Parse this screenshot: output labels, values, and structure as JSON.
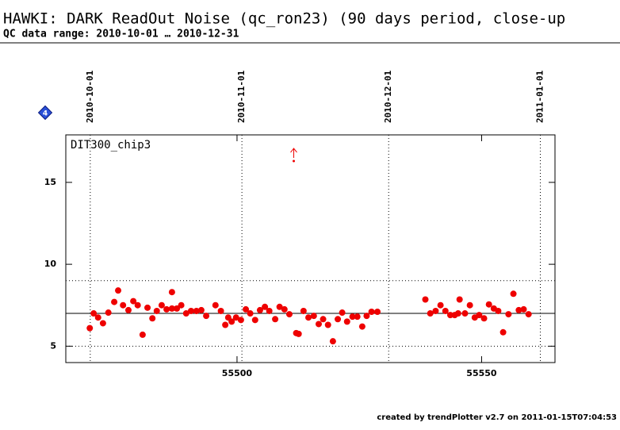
{
  "chart_data": {
    "type": "scatter",
    "title": "HAWKI: DARK ReadOut Noise (qc_ron23) (90 days period, close-up",
    "subtitle": "QC data range: 2010-10-01 … 2010-12-31",
    "panel_label": "DIT300_chip3",
    "badge": "4",
    "footer": "created by trendPlotter v2.7 on 2011-01-15T07:04:53",
    "color": "#ee0000",
    "xlim": [
      55465,
      55565
    ],
    "ylim": [
      4,
      17.9
    ],
    "xticks": [
      55500,
      55550
    ],
    "yticks": [
      5,
      10,
      15
    ],
    "date_ticks": [
      {
        "value": 55470,
        "label": "2010-10-01"
      },
      {
        "value": 55501,
        "label": "2010-11-01"
      },
      {
        "value": 55531,
        "label": "2010-12-01"
      },
      {
        "value": 55562,
        "label": "2011-01-01"
      }
    ],
    "ref_lines": [
      {
        "value": 7,
        "style": "solid"
      },
      {
        "value": 9,
        "style": "dotted"
      },
      {
        "value": 5,
        "style": "dotted"
      }
    ],
    "x": [
      55469.9,
      55470.7,
      55471.6,
      55472.6,
      55473.7,
      55474.9,
      55475.7,
      55476.7,
      55477.8,
      55478.8,
      55479.7,
      55480.7,
      55481.7,
      55482.7,
      55483.6,
      55484.6,
      55485.6,
      55486.7,
      55486.7,
      55487.7,
      55488.6,
      55489.6,
      55490.6,
      55491.7,
      55492.7,
      55493.7,
      55495.6,
      55496.7,
      55497.6,
      55498.2,
      55498.9,
      55499.8,
      55500.8,
      55501.8,
      55502.7,
      55503.7,
      55504.7,
      55505.7,
      55506.6,
      55507.8,
      55508.7,
      55509.7,
      55510.7,
      55511.6,
      55512.1,
      55512.6,
      55513.6,
      55514.6,
      55515.7,
      55516.7,
      55517.6,
      55518.6,
      55519.6,
      55520.6,
      55521.5,
      55522.5,
      55523.6,
      55524.6,
      55525.6,
      55526.5,
      55527.5,
      55528.7,
      55538.5,
      55539.5,
      55540.6,
      55541.6,
      55542.6,
      55543.6,
      55544.5,
      55545.2,
      55545.5,
      55546.6,
      55547.6,
      55548.6,
      55549.5,
      55550.5,
      55551.5,
      55552.5,
      55553.4,
      55554.4,
      55555.5,
      55556.5,
      55557.6,
      55558.6,
      55559.6
    ],
    "values": [
      6.1,
      7.0,
      6.75,
      6.4,
      7.05,
      7.7,
      8.4,
      7.5,
      7.2,
      7.75,
      7.5,
      5.7,
      7.35,
      6.7,
      7.15,
      7.5,
      7.25,
      8.3,
      7.3,
      7.3,
      7.5,
      7.0,
      7.15,
      7.15,
      7.2,
      6.85,
      7.5,
      7.15,
      6.3,
      6.75,
      6.5,
      6.75,
      6.6,
      7.25,
      7.0,
      6.6,
      7.2,
      7.4,
      7.15,
      6.65,
      7.4,
      7.25,
      6.95,
      16.3,
      5.8,
      5.75,
      7.15,
      6.75,
      6.85,
      6.35,
      6.65,
      6.3,
      5.3,
      6.65,
      7.05,
      6.5,
      6.8,
      6.8,
      6.2,
      6.85,
      7.1,
      7.1,
      7.85,
      7.0,
      7.15,
      7.5,
      7.15,
      6.9,
      6.9,
      7.0,
      7.85,
      7.0,
      7.5,
      6.75,
      6.9,
      6.7,
      7.55,
      7.3,
      7.15,
      5.85,
      6.95,
      8.2,
      7.2,
      7.25,
      6.95
    ]
  }
}
